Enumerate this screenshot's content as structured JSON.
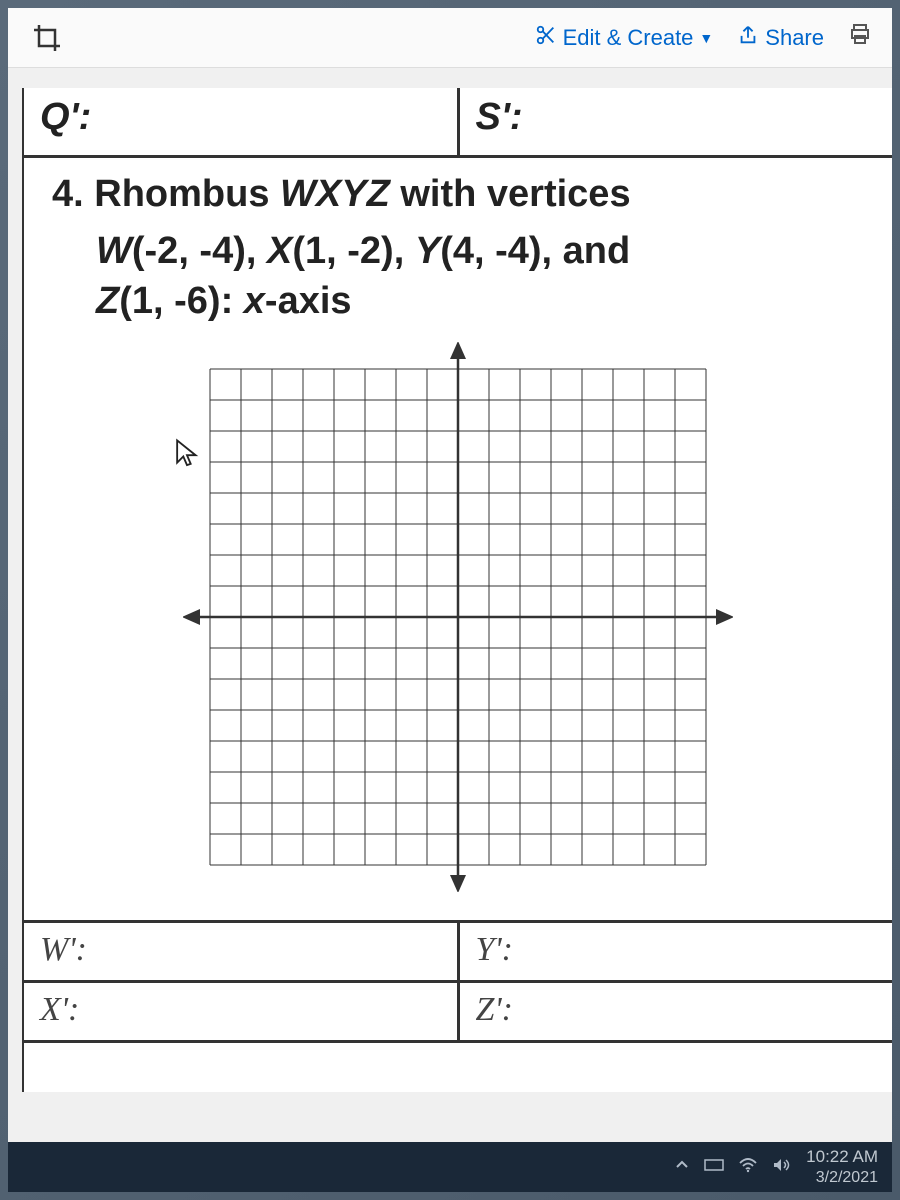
{
  "toolbar": {
    "crop_icon": "crop-icon",
    "edit_create_label": "Edit & Create",
    "share_label": "Share",
    "print_icon": "print-icon"
  },
  "worksheet": {
    "q_label": "Q':",
    "s_label": "S':",
    "problem_num": "4.",
    "problem_line1": "4. Rhombus WXYZ with vertices",
    "problem_line2": "W(-2, -4), X(1, -2), Y(4, -4), and",
    "problem_line3": "Z(1, -6): x-axis",
    "answers": {
      "w_label": "W':",
      "y_label": "Y':",
      "x_label": "X':",
      "z_label": "Z':"
    }
  },
  "grid": {
    "range": 8,
    "grid_color": "#333333",
    "axis_color": "#222222",
    "cell_size": 31,
    "svg_size": 550
  },
  "colors": {
    "background": "#6b7a8a",
    "window_bg": "#f0f0f0",
    "paper_bg": "#ffffff",
    "toolbar_link": "#0066cc",
    "text": "#222222",
    "taskbar_bg": "#1a2838",
    "taskbar_text": "#c0c8d0"
  },
  "taskbar": {
    "time": "10:22 AM",
    "date": "3/2/2021"
  }
}
